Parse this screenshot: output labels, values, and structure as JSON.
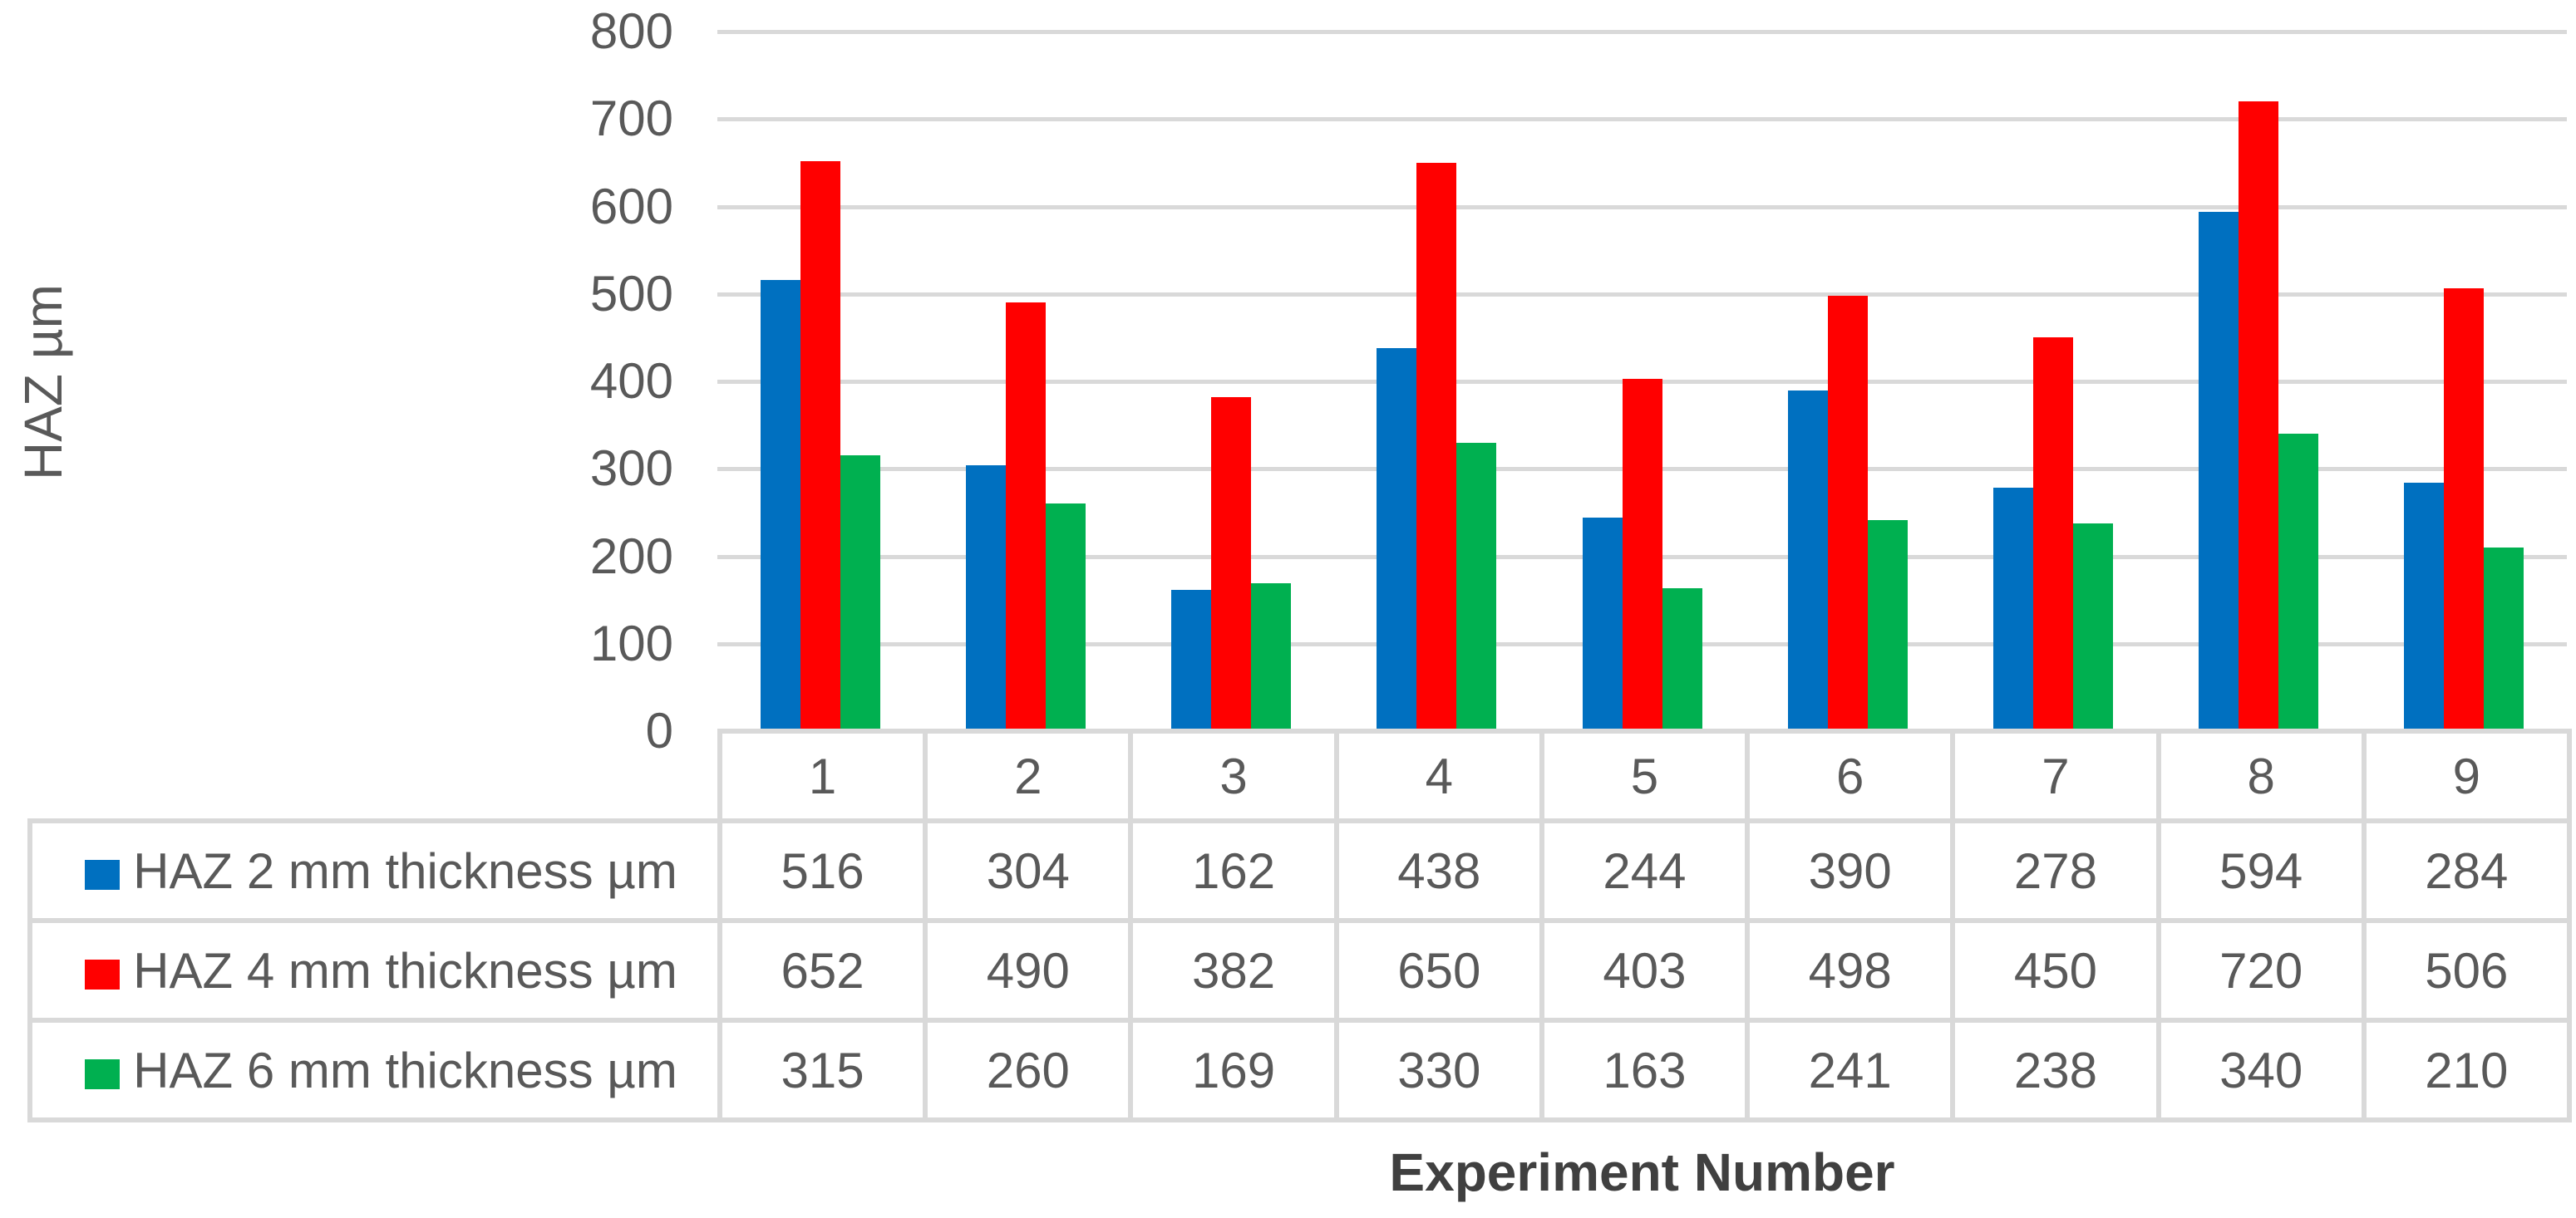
{
  "chart_data": {
    "type": "bar",
    "title": "",
    "xlabel": "Experiment Number",
    "ylabel": "HAZ µm",
    "ylim": [
      0,
      800
    ],
    "ytick_step": 100,
    "yticks": [
      "0",
      "100",
      "200",
      "300",
      "400",
      "500",
      "600",
      "700",
      "800"
    ],
    "grid": true,
    "legend_position": "data-table-left",
    "categories": [
      "1",
      "2",
      "3",
      "4",
      "5",
      "6",
      "7",
      "8",
      "9"
    ],
    "series": [
      {
        "name": "HAZ 2 mm thickness µm",
        "color": "#0070C0",
        "values": [
          516,
          304,
          162,
          438,
          244,
          390,
          278,
          594,
          284
        ]
      },
      {
        "name": "HAZ 4 mm thickness µm",
        "color": "#FF0000",
        "values": [
          652,
          490,
          382,
          650,
          403,
          498,
          450,
          720,
          506
        ]
      },
      {
        "name": "HAZ 6 mm thickness µm",
        "color": "#00B050",
        "values": [
          315,
          260,
          169,
          330,
          163,
          241,
          238,
          340,
          210
        ]
      }
    ]
  },
  "colors": {
    "gridline": "#D9D9D9",
    "table_border": "#D9D9D9",
    "axis_text": "#595959",
    "title_text": "#404040"
  }
}
